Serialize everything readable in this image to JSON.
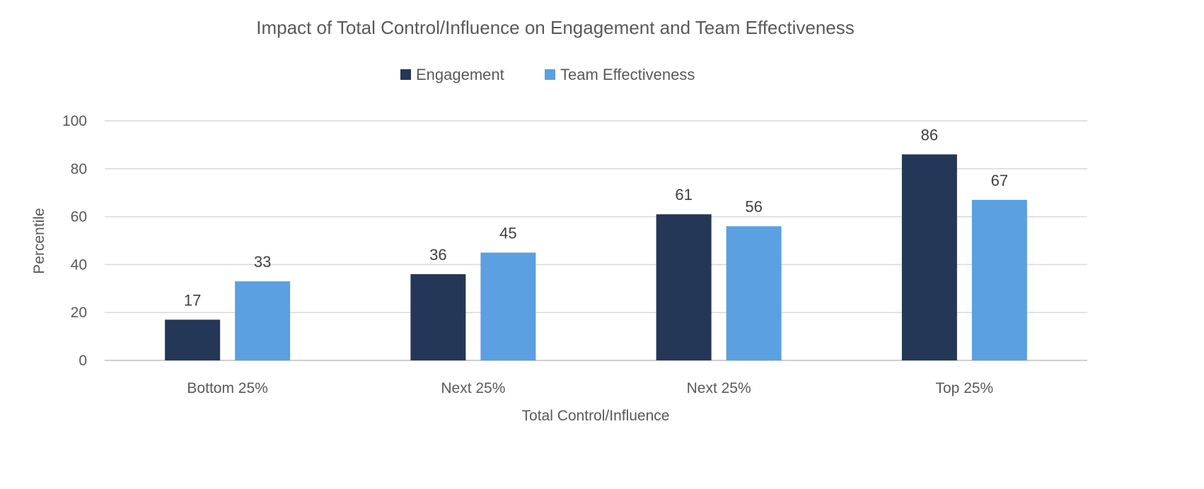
{
  "chart_data": {
    "type": "bar",
    "title": "Impact of Total Control/Influence on Engagement and Team Effectiveness",
    "xlabel": "Total Control/Influence",
    "ylabel": "Percentile",
    "categories": [
      "Bottom 25%",
      "Next 25%",
      "Next 25%",
      "Top 25%"
    ],
    "series": [
      {
        "name": "Engagement",
        "color": "#243757",
        "values": [
          17,
          36,
          61,
          86
        ]
      },
      {
        "name": "Team Effectiveness",
        "color": "#5BA0E0",
        "values": [
          33,
          45,
          56,
          67
        ]
      }
    ],
    "ylim": [
      0,
      100
    ],
    "yticks": [
      0,
      20,
      40,
      60,
      80,
      100
    ],
    "grid": true,
    "legend": "top-center",
    "data_labels": true
  }
}
